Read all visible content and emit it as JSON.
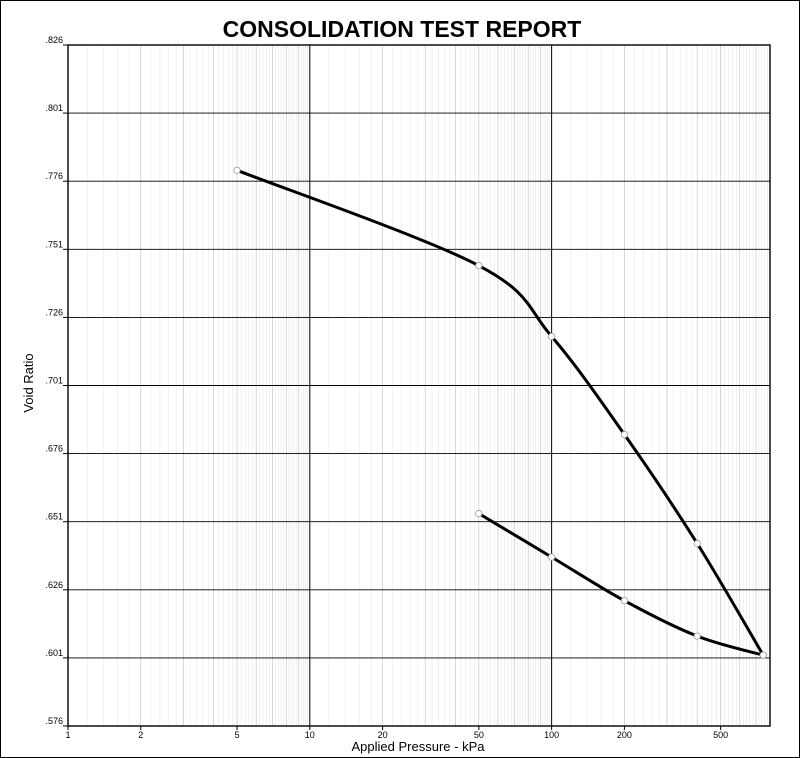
{
  "chart_data": {
    "type": "line",
    "title": "CONSOLIDATION TEST REPORT",
    "xlabel": "Applied Pressure - kPa",
    "ylabel": "Void Ratio",
    "xscale": "log",
    "xlim": [
      1,
      800
    ],
    "ylim": [
      0.576,
      0.826
    ],
    "xticks": [
      {
        "value": 1,
        "label": "1"
      },
      {
        "value": 2,
        "label": "2"
      },
      {
        "value": 5,
        "label": "5"
      },
      {
        "value": 10,
        "label": "10"
      },
      {
        "value": 20,
        "label": "20"
      },
      {
        "value": 50,
        "label": "50"
      },
      {
        "value": 100,
        "label": "100"
      },
      {
        "value": 200,
        "label": "200"
      },
      {
        "value": 500,
        "label": "500"
      }
    ],
    "yticks": [
      {
        "value": 0.576,
        "label": ".576"
      },
      {
        "value": 0.601,
        "label": ".601"
      },
      {
        "value": 0.626,
        "label": ".626"
      },
      {
        "value": 0.651,
        "label": ".651"
      },
      {
        "value": 0.676,
        "label": ".676"
      },
      {
        "value": 0.701,
        "label": ".701"
      },
      {
        "value": 0.726,
        "label": ".726"
      },
      {
        "value": 0.751,
        "label": ".751"
      },
      {
        "value": 0.776,
        "label": ".776"
      },
      {
        "value": 0.801,
        "label": ".801"
      },
      {
        "value": 0.826,
        "label": ".826"
      }
    ],
    "grid": true,
    "legend": "none",
    "line_color": "#000000",
    "marker": "open-circle",
    "series": [
      {
        "points": [
          {
            "x": 5,
            "y": 0.78
          },
          {
            "x": 50,
            "y": 0.745
          },
          {
            "x": 100,
            "y": 0.719
          },
          {
            "x": 200,
            "y": 0.683
          },
          {
            "x": 400,
            "y": 0.643
          },
          {
            "x": 750,
            "y": 0.602
          }
        ]
      },
      {
        "points": [
          {
            "x": 750,
            "y": 0.602
          },
          {
            "x": 400,
            "y": 0.609
          },
          {
            "x": 200,
            "y": 0.622
          },
          {
            "x": 100,
            "y": 0.638
          },
          {
            "x": 50,
            "y": 0.654
          }
        ]
      }
    ]
  }
}
